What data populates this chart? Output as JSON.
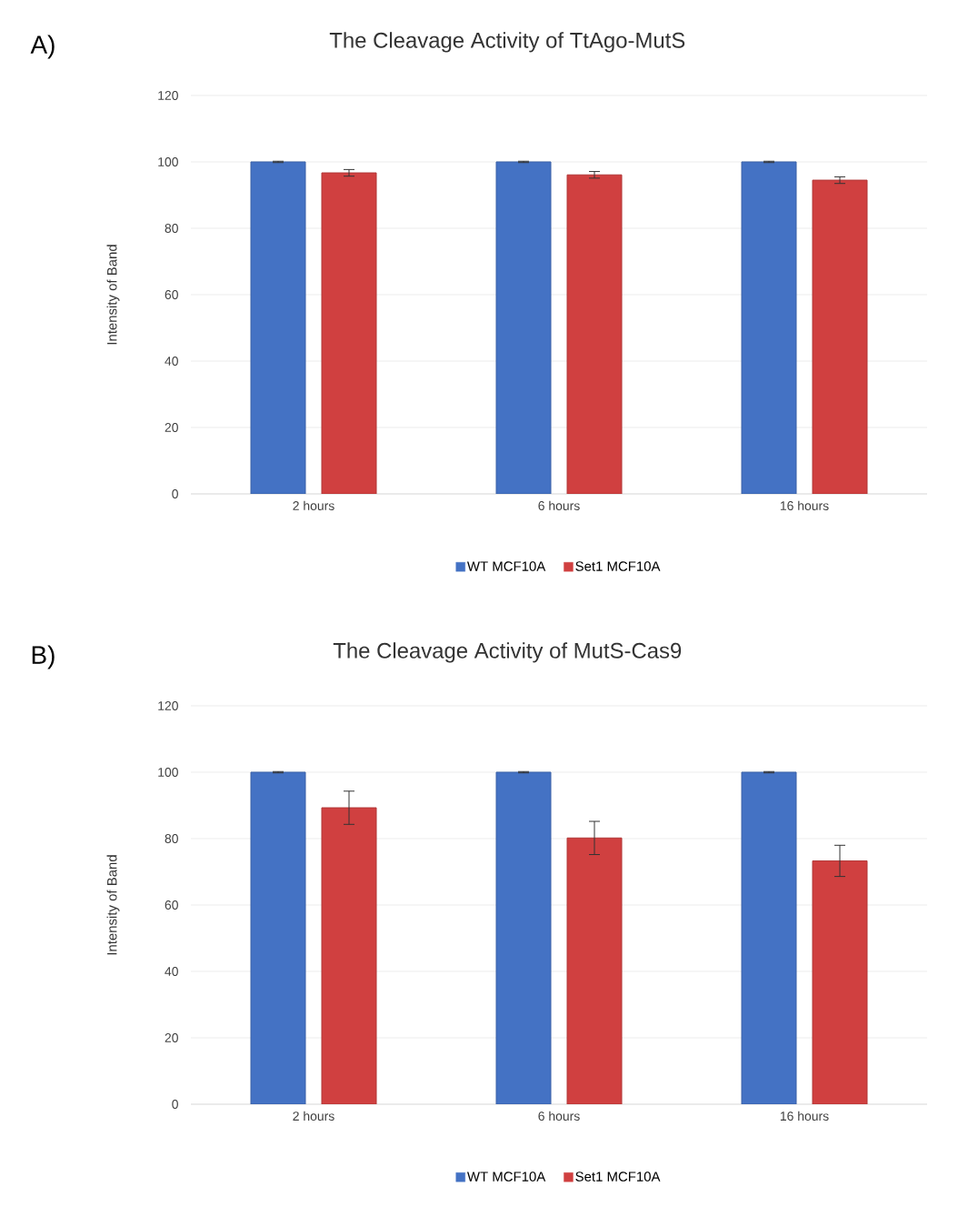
{
  "chart_data": [
    {
      "type": "bar",
      "title": "The Cleavage Activity of TtAgo-MutS",
      "ylabel": "Intensity of Band",
      "annotations": [
        "A)"
      ],
      "categories": [
        "2 hours",
        "6 hours",
        "16 hours"
      ],
      "series": [
        {
          "name": "WT MCF10A",
          "color": "#4472c4",
          "values": [
            100,
            100,
            100
          ],
          "errors": [
            0.2,
            0.2,
            0.2
          ]
        },
        {
          "name": "Set1 MCF10A",
          "color": "#d04040",
          "values": [
            96.7,
            96.1,
            94.5
          ],
          "errors": [
            1,
            1,
            1
          ]
        }
      ],
      "ylim": [
        0,
        120
      ],
      "yticks": [
        0,
        20,
        40,
        60,
        80,
        100,
        120
      ],
      "grid": "y",
      "legend": "bottom"
    },
    {
      "type": "bar",
      "title": "The Cleavage Activity of MutS-Cas9",
      "ylabel": "Intensity of Band",
      "annotations": [
        "B)"
      ],
      "categories": [
        "2 hours",
        "6 hours",
        "16 hours"
      ],
      "series": [
        {
          "name": "WT MCF10A",
          "color": "#4472c4",
          "values": [
            100,
            100,
            100
          ],
          "errors": [
            0.2,
            0.2,
            0.2
          ]
        },
        {
          "name": "Set1 MCF10A",
          "color": "#d04040",
          "values": [
            89.3,
            80.2,
            73.3
          ],
          "errors": [
            5,
            5,
            4.7
          ]
        }
      ],
      "ylim": [
        0,
        120
      ],
      "yticks": [
        0,
        20,
        40,
        60,
        80,
        100,
        120
      ],
      "grid": "y",
      "legend": "bottom"
    }
  ]
}
